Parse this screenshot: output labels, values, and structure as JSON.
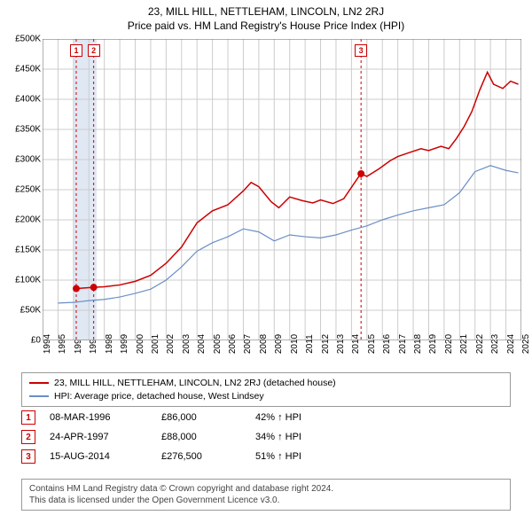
{
  "title": "23, MILL HILL, NETTLEHAM, LINCOLN, LN2 2RJ",
  "subtitle": "Price paid vs. HM Land Registry's House Price Index (HPI)",
  "chart": {
    "type": "line",
    "background_color": "#ffffff",
    "grid_color": "#cccccc",
    "plot_border_color": "#666666",
    "x": {
      "min": 1994,
      "max": 2025,
      "tick_step": 1,
      "label_fontsize": 10,
      "label_rotation": -90
    },
    "y": {
      "min": 0,
      "max": 500000,
      "tick_step": 50000,
      "tick_prefix": "£",
      "tick_suffix": "K",
      "label_fontsize": 10
    },
    "highlight_band": {
      "x_from": 1996,
      "x_to": 1997.5,
      "fill": "#e0e8f4"
    },
    "series": [
      {
        "name": "property_price",
        "label": "23, MILL HILL, NETTLEHAM, LINCOLN, LN2 2RJ (detached house)",
        "color": "#cc0000",
        "line_width": 1.5,
        "points": [
          [
            1996.2,
            86000
          ],
          [
            1997.3,
            88000
          ],
          [
            1998,
            89000
          ],
          [
            1999,
            92000
          ],
          [
            2000,
            98000
          ],
          [
            2001,
            108000
          ],
          [
            2002,
            128000
          ],
          [
            2003,
            155000
          ],
          [
            2004,
            195000
          ],
          [
            2005,
            215000
          ],
          [
            2006,
            225000
          ],
          [
            2007,
            248000
          ],
          [
            2007.5,
            262000
          ],
          [
            2008,
            255000
          ],
          [
            2008.8,
            230000
          ],
          [
            2009.3,
            220000
          ],
          [
            2010,
            238000
          ],
          [
            2010.8,
            232000
          ],
          [
            2011.5,
            228000
          ],
          [
            2012,
            233000
          ],
          [
            2012.8,
            227000
          ],
          [
            2013.5,
            235000
          ],
          [
            2014.6,
            276500
          ],
          [
            2015,
            272000
          ],
          [
            2015.8,
            285000
          ],
          [
            2016.5,
            298000
          ],
          [
            2017,
            305000
          ],
          [
            2017.8,
            312000
          ],
          [
            2018.5,
            318000
          ],
          [
            2019,
            315000
          ],
          [
            2019.8,
            322000
          ],
          [
            2020.3,
            318000
          ],
          [
            2020.8,
            335000
          ],
          [
            2021.3,
            355000
          ],
          [
            2021.8,
            380000
          ],
          [
            2022.3,
            415000
          ],
          [
            2022.8,
            445000
          ],
          [
            2023.2,
            425000
          ],
          [
            2023.8,
            418000
          ],
          [
            2024.3,
            430000
          ],
          [
            2024.8,
            425000
          ]
        ]
      },
      {
        "name": "hpi_west_lindsey",
        "label": "HPI: Average price, detached house, West Lindsey",
        "color": "#6a8fc5",
        "line_width": 1.2,
        "points": [
          [
            1995,
            62000
          ],
          [
            1996,
            63000
          ],
          [
            1997,
            66000
          ],
          [
            1998,
            68000
          ],
          [
            1999,
            72000
          ],
          [
            2000,
            78000
          ],
          [
            2001,
            85000
          ],
          [
            2002,
            100000
          ],
          [
            2003,
            122000
          ],
          [
            2004,
            148000
          ],
          [
            2005,
            162000
          ],
          [
            2006,
            172000
          ],
          [
            2007,
            185000
          ],
          [
            2008,
            180000
          ],
          [
            2009,
            165000
          ],
          [
            2010,
            175000
          ],
          [
            2011,
            172000
          ],
          [
            2012,
            170000
          ],
          [
            2013,
            175000
          ],
          [
            2014,
            183000
          ],
          [
            2015,
            190000
          ],
          [
            2016,
            200000
          ],
          [
            2017,
            208000
          ],
          [
            2018,
            215000
          ],
          [
            2019,
            220000
          ],
          [
            2020,
            225000
          ],
          [
            2021,
            245000
          ],
          [
            2022,
            280000
          ],
          [
            2023,
            290000
          ],
          [
            2024,
            282000
          ],
          [
            2024.8,
            278000
          ]
        ]
      }
    ],
    "event_markers": [
      {
        "id": "1",
        "x": 1996.18,
        "y": 86000,
        "dot_color": "#cc0000",
        "vline_color": "#cc0000",
        "vline_dash": "3,3"
      },
      {
        "id": "2",
        "x": 1997.31,
        "y": 88000,
        "dot_color": "#cc0000",
        "vline_color": "#cc0000",
        "vline_dash": "3,3"
      },
      {
        "id": "3",
        "x": 2014.62,
        "y": 276500,
        "dot_color": "#cc0000",
        "vline_color": "#cc0000",
        "vline_dash": "3,3"
      }
    ]
  },
  "legend": {
    "border_color": "#999999",
    "fontsize": 10.5,
    "items": [
      {
        "color": "#cc0000",
        "label": "23, MILL HILL, NETTLEHAM, LINCOLN, LN2 2RJ (detached house)"
      },
      {
        "color": "#6a8fc5",
        "label": "HPI: Average price, detached house, West Lindsey"
      }
    ]
  },
  "events": [
    {
      "id": "1",
      "date": "08-MAR-1996",
      "price": "£86,000",
      "hpi": "42% ↑ HPI"
    },
    {
      "id": "2",
      "date": "24-APR-1997",
      "price": "£88,000",
      "hpi": "34% ↑ HPI"
    },
    {
      "id": "3",
      "date": "15-AUG-2014",
      "price": "£276,500",
      "hpi": "51% ↑ HPI"
    }
  ],
  "disclaimer": {
    "line1": "Contains HM Land Registry data © Crown copyright and database right 2024.",
    "line2": "This data is licensed under the Open Government Licence v3.0.",
    "border_color": "#999999",
    "fontsize": 10,
    "color": "#444444"
  }
}
